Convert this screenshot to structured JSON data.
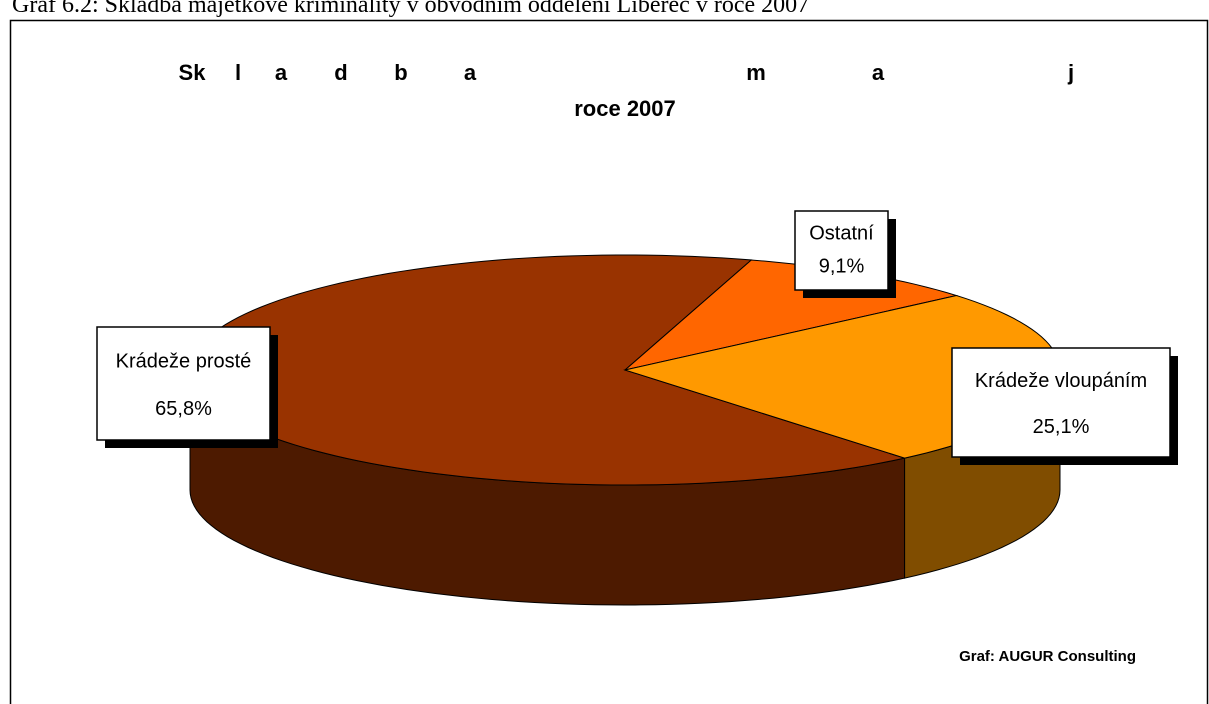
{
  "caption": "Graf 6.2: Skladba majetkové kriminality v obvodním oddělení Liberec v roce 2007",
  "chart_data": {
    "type": "pie3d",
    "title": [
      "Sk",
      "l",
      "a",
      "d",
      "b",
      "a",
      "m",
      "a",
      "j"
    ],
    "subtitle": "roce 2007",
    "categories": [
      "Krádeže prosté",
      "Ostatní",
      "Krádeže vloupáním"
    ],
    "values": [
      65.8,
      9.1,
      25.1
    ],
    "value_labels": [
      "65,8%",
      "9,1%",
      "25,1%"
    ],
    "colors": [
      "#993300",
      "#ff6600",
      "#ff9900"
    ],
    "side_colors": [
      "#4d1a00",
      "#b34700",
      "#804d00"
    ],
    "source": "Graf: AUGUR Consulting"
  }
}
